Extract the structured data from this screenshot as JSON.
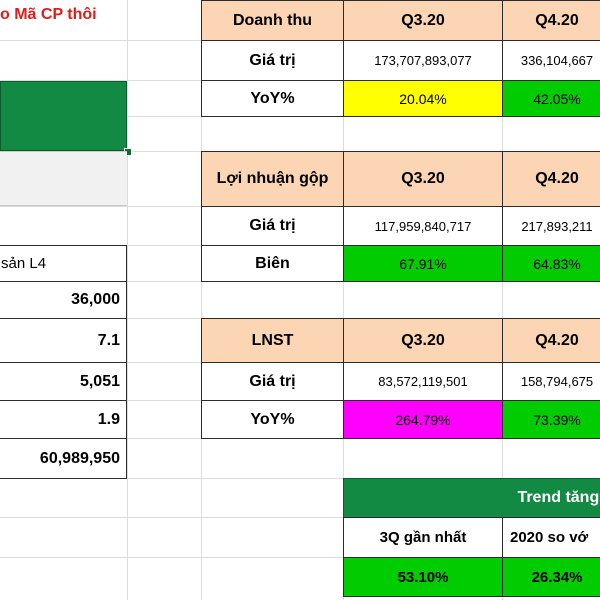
{
  "left_panel": {
    "title": "o Mã CP thôi",
    "list_header": "sản L4",
    "values": [
      "36,000",
      "7.1",
      "5,051",
      "1.9",
      "60,989,950"
    ]
  },
  "revenue_table": {
    "header": [
      "Doanh thu",
      "Q3.20",
      "Q4.20"
    ],
    "row1": [
      "Giá trị",
      "173,707,893,077",
      "336,104,667"
    ],
    "row2": [
      "YoY%",
      "20.04%",
      "42.05%"
    ]
  },
  "gross_profit_table": {
    "header": [
      "Lợi nhuận gộp",
      "Q3.20",
      "Q4.20"
    ],
    "row1": [
      "Giá trị",
      "117,959,840,717",
      "217,893,211"
    ],
    "row2": [
      "Biên",
      "67.91%",
      "64.83%"
    ]
  },
  "net_income_table": {
    "header": [
      "LNST",
      "Q3.20",
      "Q4.20"
    ],
    "row1": [
      "Giá trị",
      "83,572,119,501",
      "158,794,675"
    ],
    "row2": [
      "YoY%",
      "264.79%",
      "73.39%"
    ]
  },
  "trend_table": {
    "title": "Trend tăng t",
    "subheaders": [
      "3Q gần nhất",
      "2020 so vớ"
    ],
    "values": [
      "53.10%",
      "26.34%"
    ]
  },
  "colors": {
    "header_fill": "#fcd5b4",
    "yellow": "#ffff00",
    "green": "#00cc00",
    "magenta": "#ff00ff",
    "dark_green": "#138a43",
    "title_red": "#e31b1b"
  }
}
